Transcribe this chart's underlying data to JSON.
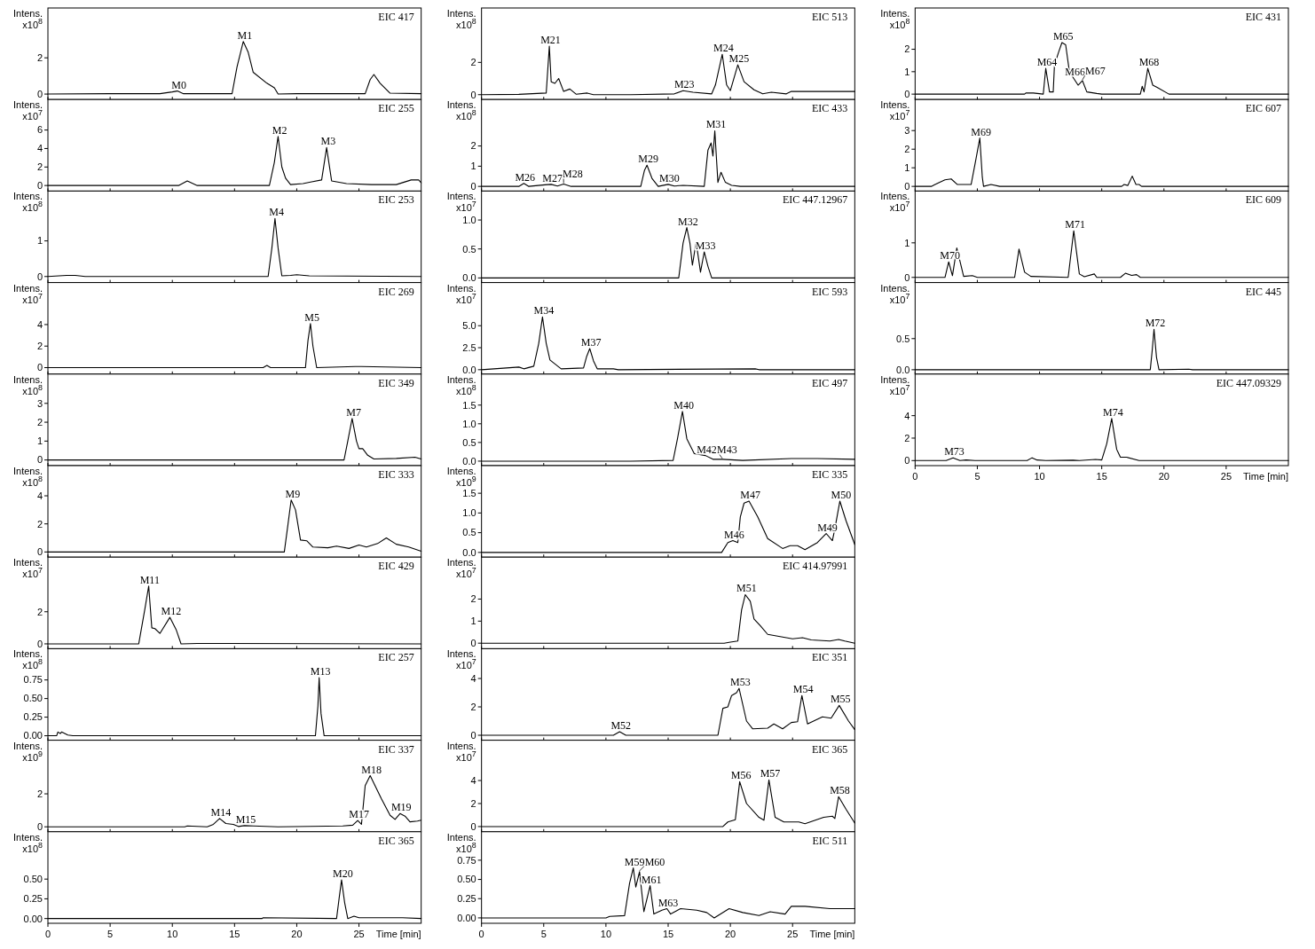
{
  "chart_data": [
    {
      "type": "line",
      "title": "EIC 417",
      "ylabel": "Intens. x10$^{8}$",
      "color": "#000000",
      "xlim": [
        0,
        30
      ],
      "ylim": [
        -0.3,
        4.75
      ],
      "yticks": [
        0,
        2
      ],
      "xticks": [
        0,
        5,
        10,
        15,
        20,
        25
      ],
      "tick_labels": "y",
      "x": [
        0,
        5,
        9,
        10.0,
        10.4,
        10.9,
        12,
        14.8,
        15.2,
        15.7,
        16.1,
        16.5,
        17.6,
        18.2,
        18.5,
        20,
        25.5,
        25.9,
        26.2,
        26.7,
        27.5,
        30
      ],
      "values": [
        0,
        0.02,
        0.02,
        0.12,
        0.17,
        0.02,
        0.02,
        0.02,
        1.5,
        2.9,
        2.3,
        1.2,
        0.6,
        0.35,
        0,
        0.02,
        0.02,
        0.8,
        1.08,
        0.6,
        0.05,
        0.02
      ],
      "annotations": [
        {
          "text": "M0",
          "x": 10.4,
          "y": 0.17
        },
        {
          "text": "M1",
          "x": 15.7,
          "y": 2.9
        }
      ]
    },
    {
      "type": "line",
      "title": "EIC 255",
      "ylabel": "Intens. x10$^{7}$",
      "color": "#000000",
      "xlim": [
        0,
        30
      ],
      "ylim": [
        -0.6,
        9.3
      ],
      "yticks": [
        0,
        2,
        4,
        6
      ],
      "xticks": [
        0,
        5,
        10,
        15,
        20,
        25
      ],
      "tick_labels": "y",
      "x": [
        0,
        10.5,
        11.2,
        12,
        17.8,
        18.2,
        18.5,
        18.8,
        19.1,
        19.5,
        20.5,
        21.2,
        22.0,
        22.4,
        22.8,
        24,
        26,
        28,
        29.2,
        29.8,
        30
      ],
      "values": [
        0,
        0,
        0.5,
        0,
        0,
        2.5,
        5.3,
        2,
        0.8,
        0.1,
        0.2,
        0.4,
        0.6,
        4.1,
        0.5,
        0.2,
        0.1,
        0.1,
        0.6,
        0.6,
        0.3
      ],
      "annotations": [
        {
          "text": "M2",
          "x": 18.5,
          "y": 5.3
        },
        {
          "text": "M3",
          "x": 22.4,
          "y": 4.1
        }
      ]
    },
    {
      "type": "line",
      "title": "EIC 253",
      "ylabel": "Intens. x10$^{8}$",
      "color": "#000000",
      "xlim": [
        0,
        30
      ],
      "ylim": [
        -0.17,
        2.4
      ],
      "yticks": [
        0,
        1
      ],
      "xticks": [
        0,
        5,
        10,
        15,
        20,
        25
      ],
      "tick_labels": "y",
      "x": [
        0,
        1.5,
        2.2,
        3,
        17.7,
        18.0,
        18.25,
        18.5,
        18.8,
        19.5,
        20,
        21,
        30
      ],
      "values": [
        0,
        0.03,
        0.03,
        0,
        0,
        0.8,
        1.63,
        0.8,
        0.02,
        0.03,
        0.05,
        0.02,
        0
      ],
      "annotations": [
        {
          "text": "M4",
          "x": 18.25,
          "y": 1.63
        }
      ]
    },
    {
      "type": "line",
      "title": "EIC 269",
      "ylabel": "Intens. x10$^{7}$",
      "color": "#000000",
      "xlim": [
        0,
        30
      ],
      "ylim": [
        -0.6,
        7.9
      ],
      "yticks": [
        0,
        2,
        4
      ],
      "xticks": [
        0,
        5,
        10,
        15,
        20,
        25
      ],
      "tick_labels": "y",
      "x": [
        0,
        17.3,
        17.6,
        17.9,
        20.7,
        20.9,
        21.1,
        21.3,
        21.6,
        24.7,
        25.2,
        30
      ],
      "values": [
        0,
        0,
        0.2,
        0,
        0,
        2.5,
        4.1,
        2,
        0,
        0.1,
        0.1,
        0
      ],
      "annotations": [
        {
          "text": "M5",
          "x": 21.1,
          "y": 4.1
        }
      ]
    },
    {
      "type": "line",
      "title": "EIC 349",
      "ylabel": "Intens. x10$^{8}$",
      "color": "#000000",
      "xlim": [
        0,
        30
      ],
      "ylim": [
        -0.3,
        4.55
      ],
      "yticks": [
        0,
        1,
        2,
        3
      ],
      "xticks": [
        0,
        5,
        10,
        15,
        20,
        25
      ],
      "tick_labels": "y",
      "x": [
        0,
        23.8,
        24.1,
        24.45,
        24.8,
        25.0,
        25.3,
        25.7,
        26.2,
        28,
        29.5,
        30
      ],
      "values": [
        0,
        0,
        1.0,
        2.2,
        1.0,
        0.6,
        0.6,
        0.25,
        0.05,
        0.08,
        0.15,
        0.05
      ],
      "annotations": [
        {
          "text": "M7",
          "x": 24.45,
          "y": 2.2
        }
      ]
    },
    {
      "type": "line",
      "title": "EIC 333",
      "ylabel": "Intens. x10$^{8}$",
      "color": "#000000",
      "xlim": [
        0,
        30
      ],
      "ylim": [
        -0.37,
        6.15
      ],
      "yticks": [
        0,
        2,
        4
      ],
      "xticks": [
        0,
        5,
        10,
        15,
        20,
        25
      ],
      "tick_labels": "y",
      "x": [
        0,
        19.0,
        19.3,
        19.55,
        19.9,
        20.3,
        20.8,
        21.3,
        22.5,
        23.2,
        24.2,
        25.0,
        25.6,
        26.5,
        27.2,
        28,
        29,
        30
      ],
      "values": [
        0,
        0,
        2,
        3.7,
        3.0,
        0.85,
        0.8,
        0.35,
        0.3,
        0.42,
        0.25,
        0.5,
        0.35,
        0.6,
        1.0,
        0.55,
        0.35,
        0.05
      ],
      "annotations": [
        {
          "text": "M9",
          "x": 19.55,
          "y": 3.7
        }
      ]
    },
    {
      "type": "line",
      "title": "EIC 429",
      "ylabel": "Intens. x10$^{7}$",
      "color": "#000000",
      "xlim": [
        0,
        30
      ],
      "ylim": [
        -0.3,
        5.4
      ],
      "yticks": [
        0,
        2
      ],
      "xticks": [
        0,
        5,
        10,
        15,
        20,
        25
      ],
      "tick_labels": "y",
      "x": [
        0,
        7.3,
        7.8,
        8.1,
        8.35,
        8.6,
        9.0,
        9.8,
        10.3,
        10.7,
        12,
        30
      ],
      "values": [
        0,
        0,
        2.2,
        3.6,
        1.0,
        0.95,
        0.65,
        1.65,
        0.9,
        0,
        0.03,
        0
      ],
      "annotations": [
        {
          "text": "M11",
          "x": 8.1,
          "y": 3.6
        },
        {
          "text": "M12",
          "x": 9.8,
          "y": 1.65
        }
      ]
    },
    {
      "type": "line",
      "title": "EIC 257",
      "ylabel": "Intens. x10$^{8}$",
      "color": "#000000",
      "xlim": [
        0,
        30
      ],
      "ylim": [
        -0.06,
        1.17
      ],
      "yticks": [
        {
          "value": 0,
          "label": "0.00"
        },
        0.25,
        {
          "value": 0.5,
          "label": "0.50"
        },
        0.75
      ],
      "xticks": [
        0,
        5,
        10,
        15,
        20,
        25
      ],
      "tick_labels": "y",
      "x": [
        0,
        0.7,
        0.8,
        1.0,
        1.1,
        1.6,
        2,
        21.5,
        21.7,
        21.8,
        21.95,
        22.2,
        30
      ],
      "values": [
        0,
        0,
        0.05,
        0.03,
        0.05,
        0.01,
        0,
        0,
        0.4,
        0.78,
        0.3,
        0,
        0
      ],
      "annotations": [
        {
          "text": "M13",
          "x": 21.8,
          "y": 0.78
        }
      ]
    },
    {
      "type": "line",
      "title": "EIC 337",
      "ylabel": "Intens. x10$^{9}$",
      "color": "#000000",
      "xlim": [
        0,
        30
      ],
      "ylim": [
        -0.3,
        5.25
      ],
      "yticks": [
        0,
        2
      ],
      "xticks": [
        0,
        5,
        10,
        15,
        20,
        25
      ],
      "tick_labels": "y",
      "x": [
        0,
        11,
        11.2,
        12.8,
        13.3,
        13.8,
        14.3,
        14.9,
        15.3,
        15.8,
        16.5,
        18.5,
        23.7,
        24.5,
        24.9,
        25.2,
        25.5,
        25.9,
        26.8,
        27.5,
        27.9,
        28.3,
        28.7,
        29.1,
        29.7,
        30
      ],
      "values": [
        0,
        0,
        0.05,
        0,
        0.15,
        0.5,
        0.2,
        0.15,
        0.02,
        0.07,
        0.05,
        0,
        0.05,
        0.1,
        0.38,
        0.15,
        2.5,
        3.1,
        1.7,
        0.7,
        0.45,
        0.8,
        0.65,
        0.3,
        0.35,
        0.4
      ],
      "annotations": [
        {
          "text": "M14",
          "x": 13.8,
          "y": 0.5
        },
        {
          "text": "M15",
          "x": 15.8,
          "y": 0.07
        },
        {
          "text": "M17",
          "x": 24.9,
          "y": 0.38
        },
        {
          "text": "M18",
          "x": 25.9,
          "y": 3.1
        },
        {
          "text": "M19",
          "x": 28.3,
          "y": 0.8
        }
      ]
    },
    {
      "type": "line",
      "title": "EIC 365",
      "ylabel": "Intens. x10$^{8}$",
      "xlabel": "Time [min]",
      "color": "#000000",
      "xlim": [
        0,
        30
      ],
      "ylim": [
        -0.06,
        1.1
      ],
      "yticks": [
        {
          "value": 0,
          "label": "0.00"
        },
        0.25,
        {
          "value": 0.5,
          "label": "0.50"
        }
      ],
      "xticks": [
        0,
        5,
        10,
        15,
        20,
        25
      ],
      "x": [
        0,
        17.2,
        17.3,
        23.2,
        23.4,
        23.6,
        23.85,
        24.1,
        24.6,
        25,
        26.5,
        28.5,
        30
      ],
      "values": [
        0,
        0,
        0.01,
        0,
        0.25,
        0.49,
        0.2,
        0,
        0.03,
        0.01,
        0.01,
        0.01,
        0
      ],
      "annotations": [
        {
          "text": "M20",
          "x": 23.6,
          "y": 0.49
        }
      ]
    },
    {
      "type": "line",
      "title": "EIC 513",
      "ylabel": "Intens. x10$^{8}$",
      "color": "#000000",
      "xlim": [
        0,
        30
      ],
      "ylim": [
        -0.3,
        5.37
      ],
      "yticks": [
        0,
        2
      ],
      "xticks": [
        0,
        5,
        10,
        15,
        20,
        25
      ],
      "tick_labels": "y",
      "x": [
        0,
        3,
        5.2,
        5.45,
        5.6,
        5.9,
        6.2,
        6.6,
        7.1,
        7.6,
        8.5,
        9,
        12,
        15.5,
        16.2,
        17,
        18.5,
        18.8,
        19.35,
        19.7,
        20.0,
        20.6,
        21.1,
        21.9,
        22.6,
        23.3,
        24.5,
        24.9,
        27,
        30
      ],
      "values": [
        0,
        0.02,
        0.1,
        3.0,
        0.8,
        0.7,
        1.0,
        0.2,
        0.35,
        0.03,
        0.1,
        0,
        0,
        0.05,
        0.25,
        0.15,
        0.05,
        0.6,
        2.5,
        0.6,
        0.25,
        1.85,
        0.8,
        0.3,
        0.05,
        0.15,
        0.05,
        0.2,
        0.2,
        0.2
      ],
      "annotations": [
        {
          "text": "M21",
          "x": 5.45,
          "y": 3.0
        },
        {
          "text": "M23",
          "x": 16.2,
          "y": 0.25
        },
        {
          "text": "M24",
          "x": 19.35,
          "y": 2.5
        },
        {
          "text": "M25",
          "x": 20.6,
          "y": 1.85
        }
      ]
    },
    {
      "type": "line",
      "title": "EIC 433",
      "ylabel": "Intens. x10$^{8}$",
      "color": "#000000",
      "xlim": [
        0,
        30
      ],
      "ylim": [
        -0.23,
        4.3
      ],
      "yticks": [
        0,
        1,
        2
      ],
      "xticks": [
        0,
        5,
        10,
        15,
        20,
        25
      ],
      "tick_labels": "y",
      "x": [
        0,
        3.0,
        3.4,
        3.8,
        5.1,
        5.6,
        6.1,
        6.6,
        7.2,
        12.8,
        13.1,
        13.3,
        13.7,
        14.2,
        15.0,
        15.5,
        16.2,
        17.9,
        18.2,
        18.45,
        18.6,
        18.75,
        19.0,
        19.25,
        19.6,
        20.1,
        20.8,
        30
      ],
      "values": [
        0,
        0,
        0.15,
        0,
        0.08,
        0.1,
        0.02,
        0.12,
        0,
        0,
        0.8,
        1.05,
        0.4,
        0,
        0.1,
        0.02,
        0.05,
        0,
        1.8,
        2.15,
        1.5,
        2.75,
        0.2,
        0.7,
        0.2,
        0.05,
        0,
        0
      ],
      "annotations": [
        {
          "text": "M26",
          "x": 3.4,
          "y": 0.15
        },
        {
          "text": "M27",
          "x": 5.6,
          "y": 0.1
        },
        {
          "text": "M28",
          "x": 6.6,
          "y": 0.12
        },
        {
          "text": "M29",
          "x": 13.3,
          "y": 1.05
        },
        {
          "text": "M30",
          "x": 15.0,
          "y": 0.1
        },
        {
          "text": "M31",
          "x": 18.75,
          "y": 2.75
        }
      ]
    },
    {
      "type": "line",
      "title": "EIC 447.12967",
      "ylabel": "Intens. x10$^{7}$",
      "color": "#000000",
      "xlim": [
        0,
        30
      ],
      "ylim": [
        -0.08,
        1.5
      ],
      "yticks": [
        {
          "value": 0,
          "label": "0.0"
        },
        0.5,
        {
          "value": 1,
          "label": "1.0"
        }
      ],
      "xticks": [
        0,
        5,
        10,
        15,
        20,
        25
      ],
      "tick_labels": "y",
      "x": [
        0,
        15.85,
        16.2,
        16.5,
        16.75,
        16.95,
        17.25,
        17.6,
        17.9,
        18.2,
        18.5,
        30
      ],
      "values": [
        0,
        0,
        0.6,
        0.87,
        0.6,
        0.22,
        0.62,
        0.1,
        0.45,
        0.2,
        0,
        0
      ],
      "annotations": [
        {
          "text": "M32",
          "x": 16.5,
          "y": 0.87
        },
        {
          "text": "M33",
          "x": 17.9,
          "y": 0.45
        }
      ]
    },
    {
      "type": "line",
      "title": "EIC 593",
      "ylabel": "Intens. x10$^{7}$",
      "color": "#000000",
      "xlim": [
        0,
        30
      ],
      "ylim": [
        -0.5,
        9.9
      ],
      "yticks": [
        {
          "value": 0,
          "label": "0.0"
        },
        2.5,
        {
          "value": 5,
          "label": "5.0"
        }
      ],
      "xticks": [
        0,
        5,
        10,
        15,
        20,
        25
      ],
      "tick_labels": "y",
      "x": [
        0,
        1,
        3.0,
        3.4,
        4.2,
        4.6,
        4.9,
        5.2,
        5.5,
        6.4,
        8.2,
        8.45,
        8.7,
        9.0,
        9.3,
        10.6,
        11,
        22,
        22.3,
        30
      ],
      "values": [
        0,
        0.1,
        0.3,
        0.1,
        0.4,
        3,
        6.0,
        3,
        1.1,
        0.1,
        0.2,
        1.5,
        2.4,
        1.0,
        0.1,
        0.1,
        0,
        0.1,
        0,
        0
      ],
      "annotations": [
        {
          "text": "M34",
          "x": 4.9,
          "y": 6.0
        },
        {
          "text": "M37",
          "x": 8.7,
          "y": 2.4
        }
      ]
    },
    {
      "type": "line",
      "title": "EIC 497",
      "ylabel": "Intens. x10$^{8}$",
      "color": "#000000",
      "xlim": [
        0,
        30
      ],
      "ylim": [
        -0.12,
        2.33
      ],
      "yticks": [
        {
          "value": 0,
          "label": "0.0"
        },
        0.5,
        {
          "value": 1,
          "label": "1.0"
        },
        1.5
      ],
      "xticks": [
        0,
        5,
        10,
        15,
        20,
        25
      ],
      "tick_labels": "y",
      "x": [
        0,
        12,
        15.4,
        15.75,
        16.15,
        16.5,
        17.1,
        18.0,
        18.6,
        19.35,
        21,
        24.9,
        27,
        30
      ],
      "values": [
        0,
        0,
        0.02,
        0.6,
        1.33,
        0.6,
        0.2,
        0.15,
        0.05,
        0.05,
        0.02,
        0.07,
        0.07,
        0.05
      ],
      "annotations": [
        {
          "text": "M40",
          "x": 16.15,
          "y": 1.33
        },
        {
          "text": "M42",
          "x": 18.0,
          "y": 0.15
        },
        {
          "text": "M43",
          "x": 19.35,
          "y": 0.05
        }
      ]
    },
    {
      "type": "line",
      "title": "EIC 335",
      "ylabel": "Intens. x10$^{9}$",
      "color": "#000000",
      "xlim": [
        0,
        30
      ],
      "ylim": [
        -0.12,
        2.2
      ],
      "yticks": [
        {
          "value": 0,
          "label": "0.0"
        },
        0.5,
        {
          "value": 1,
          "label": "1.0"
        },
        1.5
      ],
      "xticks": [
        0,
        5,
        10,
        15,
        20,
        25
      ],
      "tick_labels": "y",
      "x": [
        0,
        19.3,
        19.8,
        20.2,
        20.6,
        20.8,
        21.1,
        21.5,
        22.2,
        23.0,
        24.2,
        24.8,
        25.4,
        26.0,
        27.0,
        27.7,
        28.2,
        28.4,
        28.8,
        29.3,
        30
      ],
      "values": [
        0,
        0,
        0.25,
        0.3,
        0.25,
        0.9,
        1.25,
        1.3,
        0.9,
        0.35,
        0.1,
        0.17,
        0.17,
        0.07,
        0.25,
        0.48,
        0.3,
        0.6,
        1.3,
        0.8,
        0.2
      ],
      "annotations": [
        {
          "text": "M46",
          "x": 20.2,
          "y": 0.3
        },
        {
          "text": "M47",
          "x": 21.5,
          "y": 1.3
        },
        {
          "text": "M49",
          "x": 27.7,
          "y": 0.48
        },
        {
          "text": "M50",
          "x": 28.8,
          "y": 1.3
        }
      ]
    },
    {
      "type": "line",
      "title": "EIC 414.97991",
      "ylabel": "Intens. x10$^{7}$",
      "color": "#000000",
      "xlim": [
        0,
        30
      ],
      "ylim": [
        -0.25,
        3.9
      ],
      "yticks": [
        0,
        1,
        2
      ],
      "xticks": [
        0,
        5,
        10,
        15,
        20,
        25
      ],
      "tick_labels": "y",
      "x": [
        0,
        19.5,
        20.0,
        20.6,
        20.9,
        21.2,
        21.6,
        21.9,
        22.4,
        23.0,
        24,
        25,
        25.8,
        26.5,
        28,
        28.7,
        29.2,
        30
      ],
      "values": [
        0,
        0,
        0.05,
        0.1,
        1.5,
        2.2,
        1.9,
        1.1,
        0.8,
        0.4,
        0.3,
        0.2,
        0.25,
        0.15,
        0.1,
        0.17,
        0.1,
        0
      ],
      "annotations": [
        {
          "text": "M51",
          "x": 21.2,
          "y": 2.2
        }
      ]
    },
    {
      "type": "line",
      "title": "EIC 351",
      "ylabel": "Intens. x10$^{7}$",
      "color": "#000000",
      "xlim": [
        0,
        30
      ],
      "ylim": [
        -0.35,
        6.1
      ],
      "yticks": [
        0,
        2,
        4
      ],
      "xticks": [
        0,
        5,
        10,
        15,
        20,
        25
      ],
      "tick_labels": "y",
      "x": [
        0,
        10.6,
        11.1,
        11.6,
        19.0,
        19.4,
        19.8,
        20.1,
        20.5,
        20.7,
        21.3,
        21.8,
        23.0,
        23.5,
        24.2,
        24.9,
        25.4,
        25.75,
        26.2,
        27.4,
        28.1,
        28.75,
        29.5,
        30
      ],
      "values": [
        0,
        0,
        0.25,
        0,
        0,
        1.9,
        2.0,
        2.8,
        3.0,
        3.3,
        1.0,
        0.45,
        0.5,
        0.8,
        0.45,
        0.9,
        0.95,
        2.8,
        0.8,
        1.3,
        1.2,
        2.1,
        1.0,
        0.4
      ],
      "annotations": [
        {
          "text": "M52",
          "x": 11.1,
          "y": 0.25
        },
        {
          "text": "M53",
          "x": 20.7,
          "y": 3.3
        },
        {
          "text": "M54",
          "x": 25.75,
          "y": 2.8
        },
        {
          "text": "M55",
          "x": 28.75,
          "y": 2.1
        }
      ]
    },
    {
      "type": "line",
      "title": "EIC 365",
      "ylabel": "Intens. x10$^{7}$",
      "color": "#000000",
      "xlim": [
        0,
        30
      ],
      "ylim": [
        -0.45,
        7.5
      ],
      "yticks": [
        0,
        2,
        4
      ],
      "xticks": [
        0,
        5,
        10,
        15,
        20,
        25
      ],
      "tick_labels": "y",
      "x": [
        0,
        19.4,
        19.8,
        20.4,
        20.75,
        21.3,
        22.3,
        22.7,
        23.1,
        23.6,
        24.3,
        25.5,
        26.0,
        27.5,
        28.2,
        28.4,
        28.7,
        29.3,
        30
      ],
      "values": [
        0,
        0,
        0.4,
        0.6,
        3.9,
        2.0,
        0.8,
        0.55,
        4.05,
        0.8,
        0.4,
        0.4,
        0.25,
        0.8,
        0.9,
        0.7,
        2.6,
        1.5,
        0.3
      ],
      "annotations": [
        {
          "text": "M56",
          "x": 20.75,
          "y": 3.9
        },
        {
          "text": "M57",
          "x": 23.1,
          "y": 4.05
        },
        {
          "text": "M58",
          "x": 28.7,
          "y": 2.6
        }
      ]
    },
    {
      "type": "line",
      "title": "EIC 511",
      "ylabel": "Intens. x10$^{8}$",
      "xlabel": "Time [min]",
      "color": "#000000",
      "xlim": [
        0,
        30
      ],
      "ylim": [
        -0.07,
        1.12
      ],
      "yticks": [
        {
          "value": 0,
          "label": "0.00"
        },
        0.25,
        {
          "value": 0.5,
          "label": "0.50"
        },
        0.75
      ],
      "xticks": [
        0,
        5,
        10,
        15,
        20,
        25
      ],
      "x": [
        0,
        10,
        10.3,
        11.5,
        11.9,
        12.2,
        12.4,
        12.7,
        13.05,
        13.55,
        13.85,
        14.5,
        14.9,
        15.2,
        16.0,
        17.3,
        18.1,
        18.7,
        19.9,
        21.0,
        22.3,
        23.2,
        24.4,
        24.9,
        26,
        28,
        30
      ],
      "values": [
        0,
        0,
        0.02,
        0.03,
        0.45,
        0.65,
        0.4,
        0.6,
        0.08,
        0.42,
        0.05,
        0.1,
        0.12,
        0.05,
        0.12,
        0.1,
        0.07,
        0,
        0.12,
        0.07,
        0.03,
        0.08,
        0.05,
        0.15,
        0.15,
        0.12,
        0.12
      ],
      "annotations": [
        {
          "text": "M59",
          "x": 12.2,
          "y": 0.65
        },
        {
          "text": "M60",
          "x": 12.7,
          "y": 0.6
        },
        {
          "text": "M61",
          "x": 13.55,
          "y": 0.42
        },
        {
          "text": "M63",
          "x": 14.9,
          "y": 0.12
        }
      ]
    },
    {
      "type": "line",
      "title": "EIC 431",
      "ylabel": "Intens. x10$^{8}$",
      "color": "#000000",
      "xlim": [
        0,
        30
      ],
      "ylim": [
        -0.24,
        3.84
      ],
      "yticks": [
        0,
        1,
        2
      ],
      "xticks": [
        0,
        5,
        10,
        15,
        20,
        25
      ],
      "tick_labels": "y",
      "x": [
        0,
        8.8,
        8.9,
        9.5,
        10.3,
        10.5,
        10.8,
        11.1,
        11.2,
        11.55,
        11.8,
        12.1,
        12.4,
        12.75,
        13.1,
        13.45,
        13.8,
        14.6,
        15,
        18.1,
        18.25,
        18.4,
        18.7,
        19.1,
        19.45,
        20.4,
        30
      ],
      "values": [
        0,
        0,
        0.05,
        0.05,
        0,
        1.15,
        0.1,
        0.1,
        1.3,
        1.9,
        2.3,
        2.2,
        1.0,
        0.7,
        0.4,
        0.6,
        0.1,
        0.03,
        0,
        0,
        0.35,
        0.1,
        1.15,
        0.4,
        0.3,
        0,
        0
      ],
      "annotations": [
        {
          "text": "M64",
          "x": 10.5,
          "y": 1.15
        },
        {
          "text": "M65",
          "x": 11.8,
          "y": 2.3
        },
        {
          "text": "M66",
          "x": 12.75,
          "y": 0.7
        },
        {
          "text": "M67",
          "x": 13.45,
          "y": 0.6
        },
        {
          "text": "M68",
          "x": 18.7,
          "y": 1.15
        }
      ]
    },
    {
      "type": "line",
      "title": "EIC 607",
      "ylabel": "Intens. x10$^{7}$",
      "color": "#000000",
      "xlim": [
        0,
        30
      ],
      "ylim": [
        -0.25,
        4.67
      ],
      "yticks": [
        0,
        1,
        2,
        3
      ],
      "xticks": [
        0,
        5,
        10,
        15,
        20,
        25
      ],
      "tick_labels": "y",
      "x": [
        0,
        1.3,
        1.6,
        2.4,
        2.9,
        3.4,
        4.5,
        4.9,
        5.2,
        5.4,
        5.5,
        6.1,
        6.8,
        16.6,
        16.8,
        17.1,
        17.45,
        17.75,
        18.0,
        18.2,
        30
      ],
      "values": [
        0,
        0,
        0.1,
        0.35,
        0.4,
        0.1,
        0.1,
        1.5,
        2.6,
        0.5,
        0,
        0.1,
        0,
        0,
        0.1,
        0.05,
        0.55,
        0.1,
        0.1,
        0,
        0
      ],
      "annotations": [
        {
          "text": "M69",
          "x": 5.2,
          "y": 2.6
        }
      ]
    },
    {
      "type": "line",
      "title": "EIC 609",
      "ylabel": "Intens. x10$^{7}$",
      "color": "#000000",
      "xlim": [
        0,
        30
      ],
      "ylim": [
        -0.15,
        2.5
      ],
      "yticks": [
        0,
        1
      ],
      "xticks": [
        0,
        5,
        10,
        15,
        20,
        25
      ],
      "tick_labels": "y",
      "x": [
        0,
        2.4,
        2.7,
        3.0,
        3.35,
        3.9,
        4.6,
        5.0,
        8.0,
        8.35,
        8.8,
        9.3,
        12.3,
        12.75,
        13.2,
        13.6,
        14.4,
        14.6,
        16.5,
        16.9,
        17.4,
        17.8,
        18.1,
        30
      ],
      "values": [
        0,
        0,
        0.45,
        0.05,
        0.85,
        0.03,
        0.05,
        0,
        0,
        0.82,
        0.15,
        0.03,
        0,
        1.35,
        0.1,
        0.02,
        0.1,
        0,
        0,
        0.12,
        0.06,
        0.08,
        0,
        0
      ],
      "annotations": [
        {
          "text": "M70",
          "x": 2.7,
          "y": 0.45
        },
        {
          "text": "M71",
          "x": 12.75,
          "y": 1.35
        }
      ]
    },
    {
      "type": "line",
      "title": "EIC 445",
      "ylabel": "Intens. x10$^{7}$",
      "color": "#000000",
      "xlim": [
        0,
        30
      ],
      "ylim": [
        -0.07,
        1.4
      ],
      "yticks": [
        {
          "value": 0,
          "label": "0.0"
        },
        0.5
      ],
      "xticks": [
        0,
        5,
        10,
        15,
        20,
        25
      ],
      "tick_labels": "y",
      "x": [
        0,
        18.9,
        19.05,
        19.2,
        19.4,
        19.6,
        22.0,
        22.3,
        30
      ],
      "values": [
        0,
        0,
        0.3,
        0.65,
        0.2,
        0,
        0.01,
        0,
        0
      ],
      "annotations": [
        {
          "text": "M72",
          "x": 19.2,
          "y": 0.65
        }
      ]
    },
    {
      "type": "line",
      "title": "EIC 447.09329",
      "ylabel": "Intens. x10$^{7}$",
      "xlabel": "Time [min]",
      "color": "#000000",
      "xlim": [
        0,
        30
      ],
      "ylim": [
        -0.45,
        7.7
      ],
      "yticks": [
        0,
        2,
        4
      ],
      "xticks": [
        0,
        5,
        10,
        15,
        20,
        25
      ],
      "x": [
        0,
        2.5,
        3.05,
        3.6,
        4.1,
        4.8,
        9.0,
        9.4,
        9.8,
        10.5,
        12.7,
        13.2,
        14.5,
        15.0,
        15.4,
        15.8,
        16.2,
        16.5,
        17.0,
        18.0,
        30
      ],
      "values": [
        0,
        0,
        0.25,
        0,
        0.05,
        0,
        0,
        0.25,
        0.05,
        0,
        0.03,
        0,
        0.1,
        0.05,
        1.5,
        3.75,
        1.0,
        0.3,
        0.3,
        0,
        0
      ],
      "annotations": [
        {
          "text": "M73",
          "x": 3.05,
          "y": 0.25
        },
        {
          "text": "M74",
          "x": 15.8,
          "y": 3.75
        }
      ]
    }
  ]
}
